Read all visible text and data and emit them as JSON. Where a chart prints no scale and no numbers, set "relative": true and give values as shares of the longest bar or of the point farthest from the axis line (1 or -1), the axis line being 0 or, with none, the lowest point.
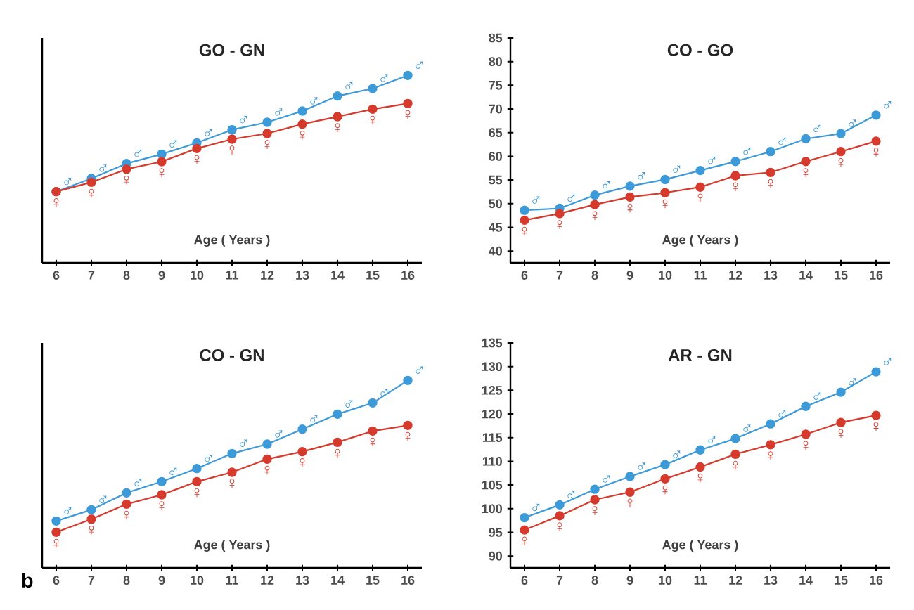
{
  "chart_data": [
    {
      "type": "line",
      "title": "GO - GN",
      "xlabel": "Age ( Years )",
      "x": [
        6,
        7,
        8,
        9,
        10,
        11,
        12,
        13,
        14,
        15,
        16
      ],
      "xlim": [
        5.6,
        16.4
      ],
      "xticks": [
        6,
        7,
        8,
        9,
        10,
        11,
        12,
        13,
        14,
        15,
        16
      ],
      "relative": true,
      "marker": "circle",
      "series": [
        {
          "name": "♂",
          "color": "#3d9ad8",
          "values": [
            0.38,
            0.45,
            0.53,
            0.58,
            0.64,
            0.71,
            0.75,
            0.81,
            0.89,
            0.93,
            1
          ]
        },
        {
          "name": "♀",
          "color": "#d63a2c",
          "values": [
            0.38,
            0.43,
            0.5,
            0.54,
            0.61,
            0.66,
            0.69,
            0.74,
            0.78,
            0.82,
            0.85
          ]
        }
      ]
    },
    {
      "type": "line",
      "title": "CO - GO",
      "xlabel": "Age ( Years )",
      "x": [
        6,
        7,
        8,
        9,
        10,
        11,
        12,
        13,
        14,
        15,
        16
      ],
      "xlim": [
        5.6,
        16.4
      ],
      "xticks": [
        6,
        7,
        8,
        9,
        10,
        11,
        12,
        13,
        14,
        15,
        16
      ],
      "ylim": [
        37.5,
        85
      ],
      "yticks": [
        40,
        45,
        50,
        55,
        60,
        65,
        70,
        75,
        80,
        85
      ],
      "marker": "circle",
      "series": [
        {
          "name": "♂",
          "color": "#3d9ad8",
          "values": [
            48.6,
            49.0,
            51.8,
            53.7,
            55.1,
            57.0,
            58.9,
            61.0,
            63.7,
            64.8,
            68.7
          ]
        },
        {
          "name": "♀",
          "color": "#d63a2c",
          "values": [
            46.5,
            47.9,
            49.8,
            51.4,
            52.3,
            53.5,
            55.9,
            56.6,
            58.9,
            61.0,
            63.2
          ]
        }
      ]
    },
    {
      "type": "line",
      "title": "CO - GN",
      "xlabel": "Age ( Years )",
      "annotations": [
        "b"
      ],
      "x": [
        6,
        7,
        8,
        9,
        10,
        11,
        12,
        13,
        14,
        15,
        16
      ],
      "xlim": [
        5.6,
        16.4
      ],
      "xticks": [
        6,
        7,
        8,
        9,
        10,
        11,
        12,
        13,
        14,
        15,
        16
      ],
      "relative": true,
      "marker": "circle",
      "series": [
        {
          "name": "♂",
          "color": "#3d9ad8",
          "values": [
            0.25,
            0.31,
            0.4,
            0.46,
            0.53,
            0.61,
            0.66,
            0.74,
            0.82,
            0.88,
            1
          ]
        },
        {
          "name": "♀",
          "color": "#d63a2c",
          "values": [
            0.19,
            0.26,
            0.34,
            0.39,
            0.46,
            0.51,
            0.58,
            0.62,
            0.67,
            0.73,
            0.76
          ]
        }
      ]
    },
    {
      "type": "line",
      "title": "AR - GN",
      "xlabel": "Age ( Years )",
      "x": [
        6,
        7,
        8,
        9,
        10,
        11,
        12,
        13,
        14,
        15,
        16
      ],
      "xlim": [
        5.6,
        16.4
      ],
      "xticks": [
        6,
        7,
        8,
        9,
        10,
        11,
        12,
        13,
        14,
        15,
        16
      ],
      "ylim": [
        87.5,
        135
      ],
      "yticks": [
        90,
        95,
        100,
        105,
        110,
        115,
        120,
        125,
        130,
        135
      ],
      "marker": "circle",
      "series": [
        {
          "name": "♂",
          "color": "#3d9ad8",
          "values": [
            98.1,
            100.8,
            104.1,
            106.8,
            109.3,
            112.4,
            114.8,
            117.9,
            121.6,
            124.6,
            128.9
          ]
        },
        {
          "name": "♀",
          "color": "#d63a2c",
          "values": [
            95.5,
            98.5,
            101.9,
            103.5,
            106.3,
            108.8,
            111.5,
            113.5,
            115.7,
            118.2,
            119.7
          ]
        }
      ]
    }
  ]
}
